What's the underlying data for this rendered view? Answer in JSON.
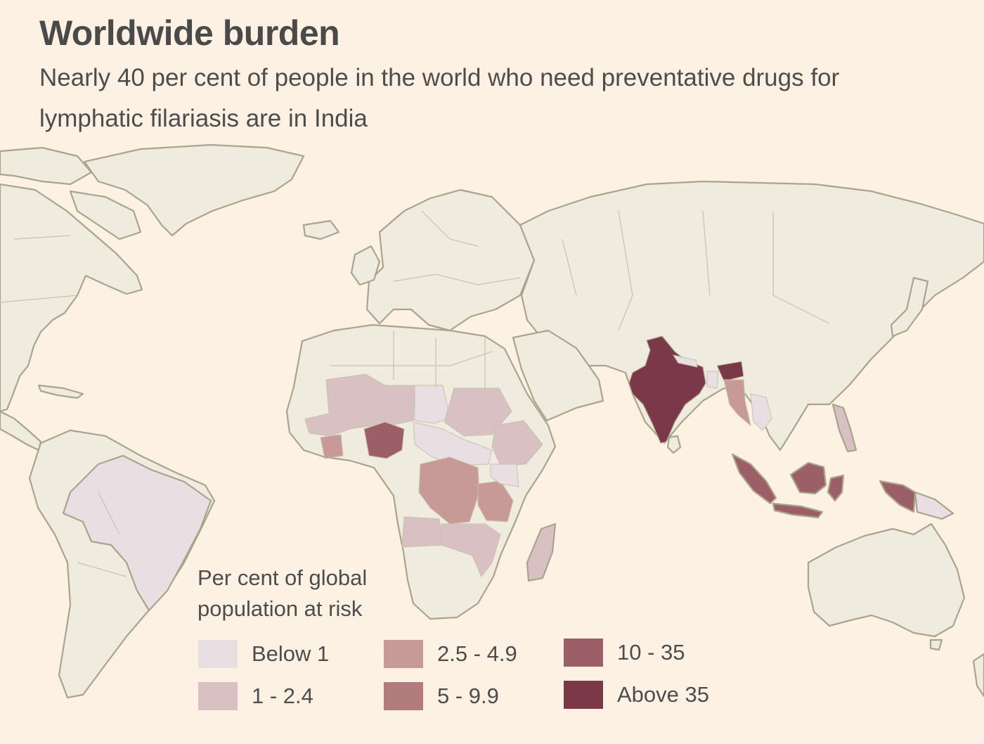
{
  "title": "Worldwide burden",
  "subtitle": "Nearly 40 per cent of people in the world who need preventative drugs for lymphatic filariasis are in India",
  "legend": {
    "title": "Per cent of global population at risk",
    "items": [
      {
        "label": "Below 1",
        "color": "#e9dfe2"
      },
      {
        "label": "1 - 2.4",
        "color": "#d9c0c2"
      },
      {
        "label": "2.5 - 4.9",
        "color": "#c79a98"
      },
      {
        "label": "5 - 9.9",
        "color": "#b27b7d"
      },
      {
        "label": "10 - 35",
        "color": "#9d5f67"
      },
      {
        "label": "Above 35",
        "color": "#7a3848"
      }
    ]
  },
  "map": {
    "base_color": "#efebdf",
    "coastline_color": "#a9a48d",
    "background_color": "#fdf1e4"
  }
}
